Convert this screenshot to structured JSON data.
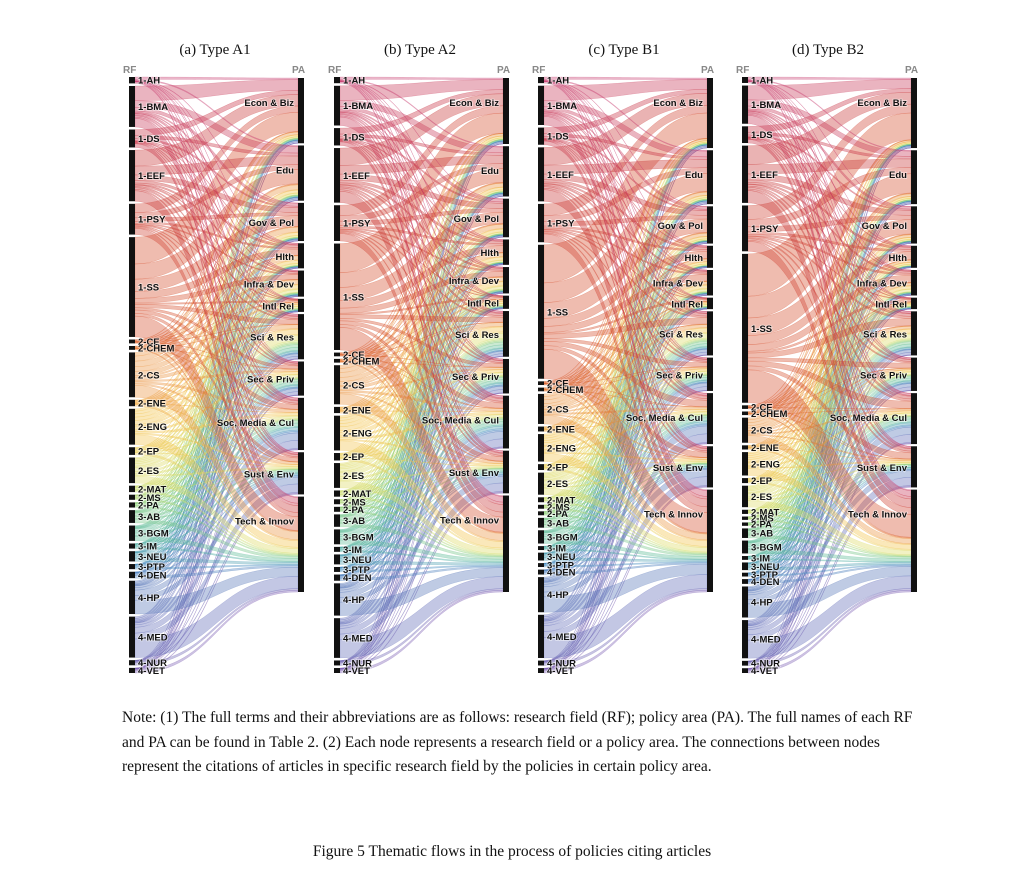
{
  "chart_data": {
    "type": "sankey",
    "left_axis_tag": "RF",
    "right_axis_tag": "PA",
    "panels": [
      {
        "title": "(a) Type A1"
      },
      {
        "title": "(b) Type A2"
      },
      {
        "title": "(c) Type B1"
      },
      {
        "title": "(d) Type B2"
      }
    ],
    "research_fields": [
      "1-AH",
      "1-BMA",
      "1-DS",
      "1-EEF",
      "1-PSY",
      "1-SS",
      "2-CE",
      "2-CHEM",
      "2-CS",
      "2-ENE",
      "2-ENG",
      "2-EP",
      "2-ES",
      "2-MAT",
      "2-MS",
      "2-PA",
      "3-AB",
      "3-BGM",
      "3-IM",
      "3-NEU",
      "3-PTP",
      "4-DEN",
      "4-HP",
      "4-MED",
      "4-NUR",
      "4-VET"
    ],
    "policy_areas": [
      "Econ & Biz",
      "Edu",
      "Gov & Pol",
      "Hlth",
      "Infra & Dev",
      "Intl Rel",
      "Sci & Res",
      "Sec & Priv",
      "Soc, Media & Cul",
      "Sust & Env",
      "Tech & Innov"
    ]
  },
  "note": "Note: (1) The full terms and their abbreviations are as follows: research field (RF); policy area (PA). The full names of each RF and PA can be found in Table 2. (2) Each node represents a research field or a policy area. The connections between nodes represent the citations of articles in specific research field by the policies in certain policy area.",
  "caption": "Figure 5 Thematic flows in the process of policies citing articles"
}
